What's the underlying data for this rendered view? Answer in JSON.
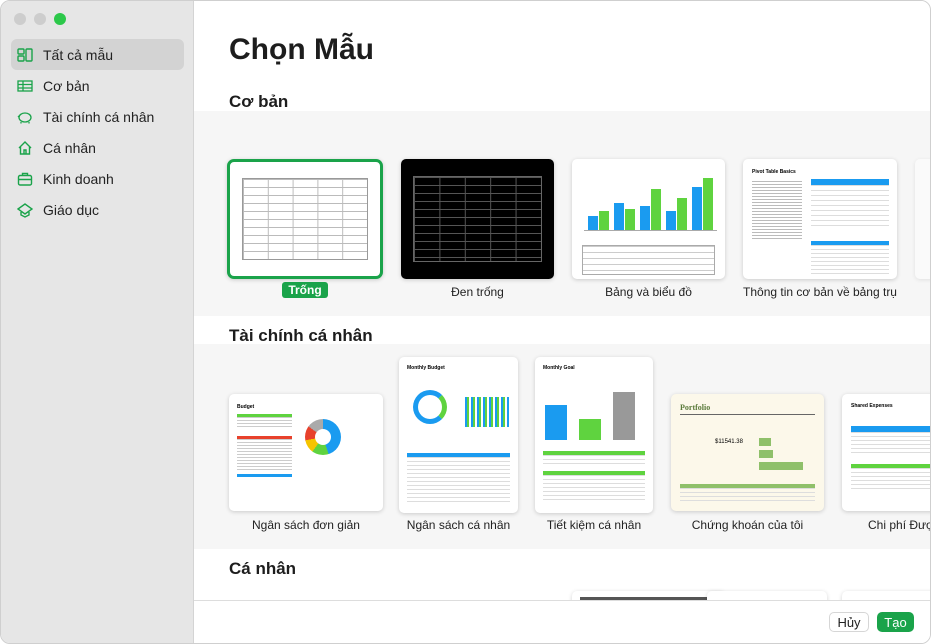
{
  "window": {
    "title": "Chọn Mẫu"
  },
  "sidebar": {
    "items": [
      {
        "label": "Tất cả mẫu",
        "icon": "grid-icon",
        "selected": true
      },
      {
        "label": "Cơ bản",
        "icon": "table-icon"
      },
      {
        "label": "Tài chính cá nhân",
        "icon": "piggy-bank-icon"
      },
      {
        "label": "Cá nhân",
        "icon": "house-icon"
      },
      {
        "label": "Kinh doanh",
        "icon": "briefcase-icon"
      },
      {
        "label": "Giáo dục",
        "icon": "graduation-cap-icon"
      }
    ]
  },
  "sections": [
    {
      "title": "Cơ bản",
      "templates": [
        {
          "label": "Trống",
          "selected": true
        },
        {
          "label": "Đen trống"
        },
        {
          "label": "Bảng và biểu đồ"
        },
        {
          "label": "Thông tin cơ bản về bảng trụ",
          "thumb_title": "Pivot Table Basics"
        }
      ]
    },
    {
      "title": "Tài chính cá nhân",
      "templates": [
        {
          "label": "Ngân sách đơn giản",
          "thumb_title": "Budget"
        },
        {
          "label": "Ngân sách cá nhân",
          "thumb_title": "Monthly Budget"
        },
        {
          "label": "Tiết kiệm cá nhân",
          "thumb_title": "Monthly Goal"
        },
        {
          "label": "Chứng khoán của tôi",
          "thumb_title": "Portfolio",
          "thumb_value": "$11541.38"
        },
        {
          "label": "Chi phí Được",
          "thumb_title": "Shared Expenses"
        }
      ]
    },
    {
      "title": "Cá nhân"
    }
  ],
  "footer": {
    "cancel": "Hủy",
    "create": "Tạo"
  },
  "colors": {
    "accent": "#1aa34a",
    "blue": "#1a9bf0",
    "green": "#5fd33f"
  }
}
